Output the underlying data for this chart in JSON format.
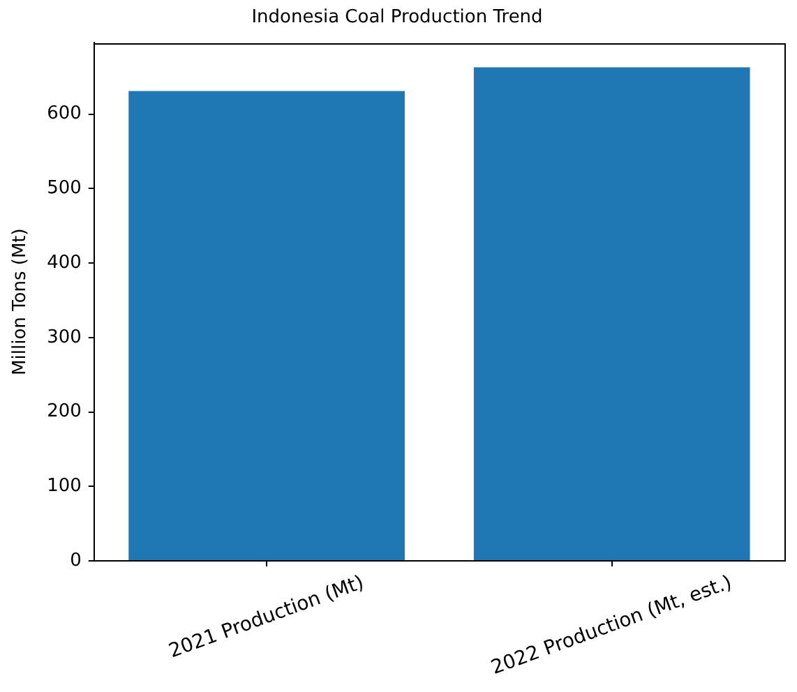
{
  "chart_data": {
    "type": "bar",
    "title": "Indonesia Coal Production Trend",
    "ylabel": "Million Tons (Mt)",
    "categories": [
      "2021 Production (Mt)",
      "2022 Production (Mt, est.)"
    ],
    "values": [
      631,
      663
    ],
    "color": "#1f77b4",
    "ylim": [
      0,
      696
    ],
    "yticks": [
      0,
      100,
      200,
      300,
      400,
      500,
      600
    ]
  }
}
